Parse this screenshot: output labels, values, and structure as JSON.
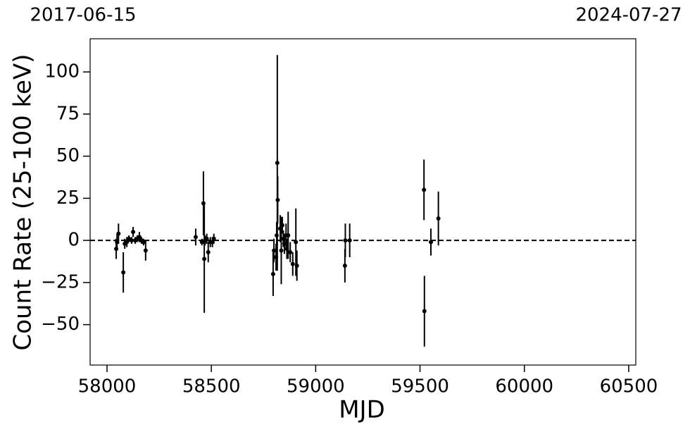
{
  "chart_data": {
    "type": "errorbar",
    "xlabel": "MJD",
    "ylabel": "Count Rate (25-100 keV)",
    "date_start": "2017-06-15",
    "date_end": "2024-07-27",
    "color": "#000000",
    "reference_line": 0,
    "xlim": [
      57919,
      60534
    ],
    "ylim": [
      -74,
      119.7
    ],
    "xticks": [
      58000,
      58500,
      59000,
      59500,
      60000,
      60500
    ],
    "yticks": [
      {
        "value": -50,
        "label": "−50"
      },
      {
        "value": -25,
        "label": "−25"
      },
      0,
      25,
      50,
      75,
      100
    ],
    "x": [
      58044,
      58048,
      58055,
      58078,
      58085,
      58095,
      58105,
      58118,
      58125,
      58135,
      58145,
      58155,
      58165,
      58175,
      58185,
      58425,
      58455,
      58462,
      58466,
      58470,
      58478,
      58485,
      58495,
      58505,
      58512,
      58796,
      58800,
      58810,
      58813,
      58816,
      58818,
      58830,
      58835,
      58840,
      58845,
      58850,
      58858,
      58862,
      58868,
      58878,
      58890,
      58905,
      58910,
      59140,
      59142,
      59163,
      59519,
      59521,
      59552,
      59588
    ],
    "values": [
      -5,
      -1,
      4,
      -19,
      -2,
      -1,
      1,
      0,
      5,
      0,
      1,
      2,
      0,
      -1,
      -6,
      2,
      -1,
      22,
      -11,
      0,
      1,
      -7,
      -1,
      -1,
      1,
      -20,
      -6,
      -10,
      3,
      46,
      24,
      7,
      -6,
      9,
      1,
      -2,
      3,
      -5,
      3,
      -7,
      -14,
      -1,
      -15,
      -15,
      0,
      0,
      30,
      -42,
      -1,
      13
    ],
    "errors": [
      6,
      5,
      6,
      12,
      3,
      3,
      2,
      2,
      3,
      2,
      2,
      3,
      2,
      2,
      6,
      5,
      2,
      19,
      32,
      3,
      3,
      6,
      3,
      3,
      3,
      13,
      7,
      8,
      8,
      64,
      14,
      8,
      20,
      5,
      5,
      6,
      7,
      6,
      14,
      6,
      7,
      20,
      9,
      10,
      10,
      10,
      18,
      21,
      8,
      16
    ]
  }
}
